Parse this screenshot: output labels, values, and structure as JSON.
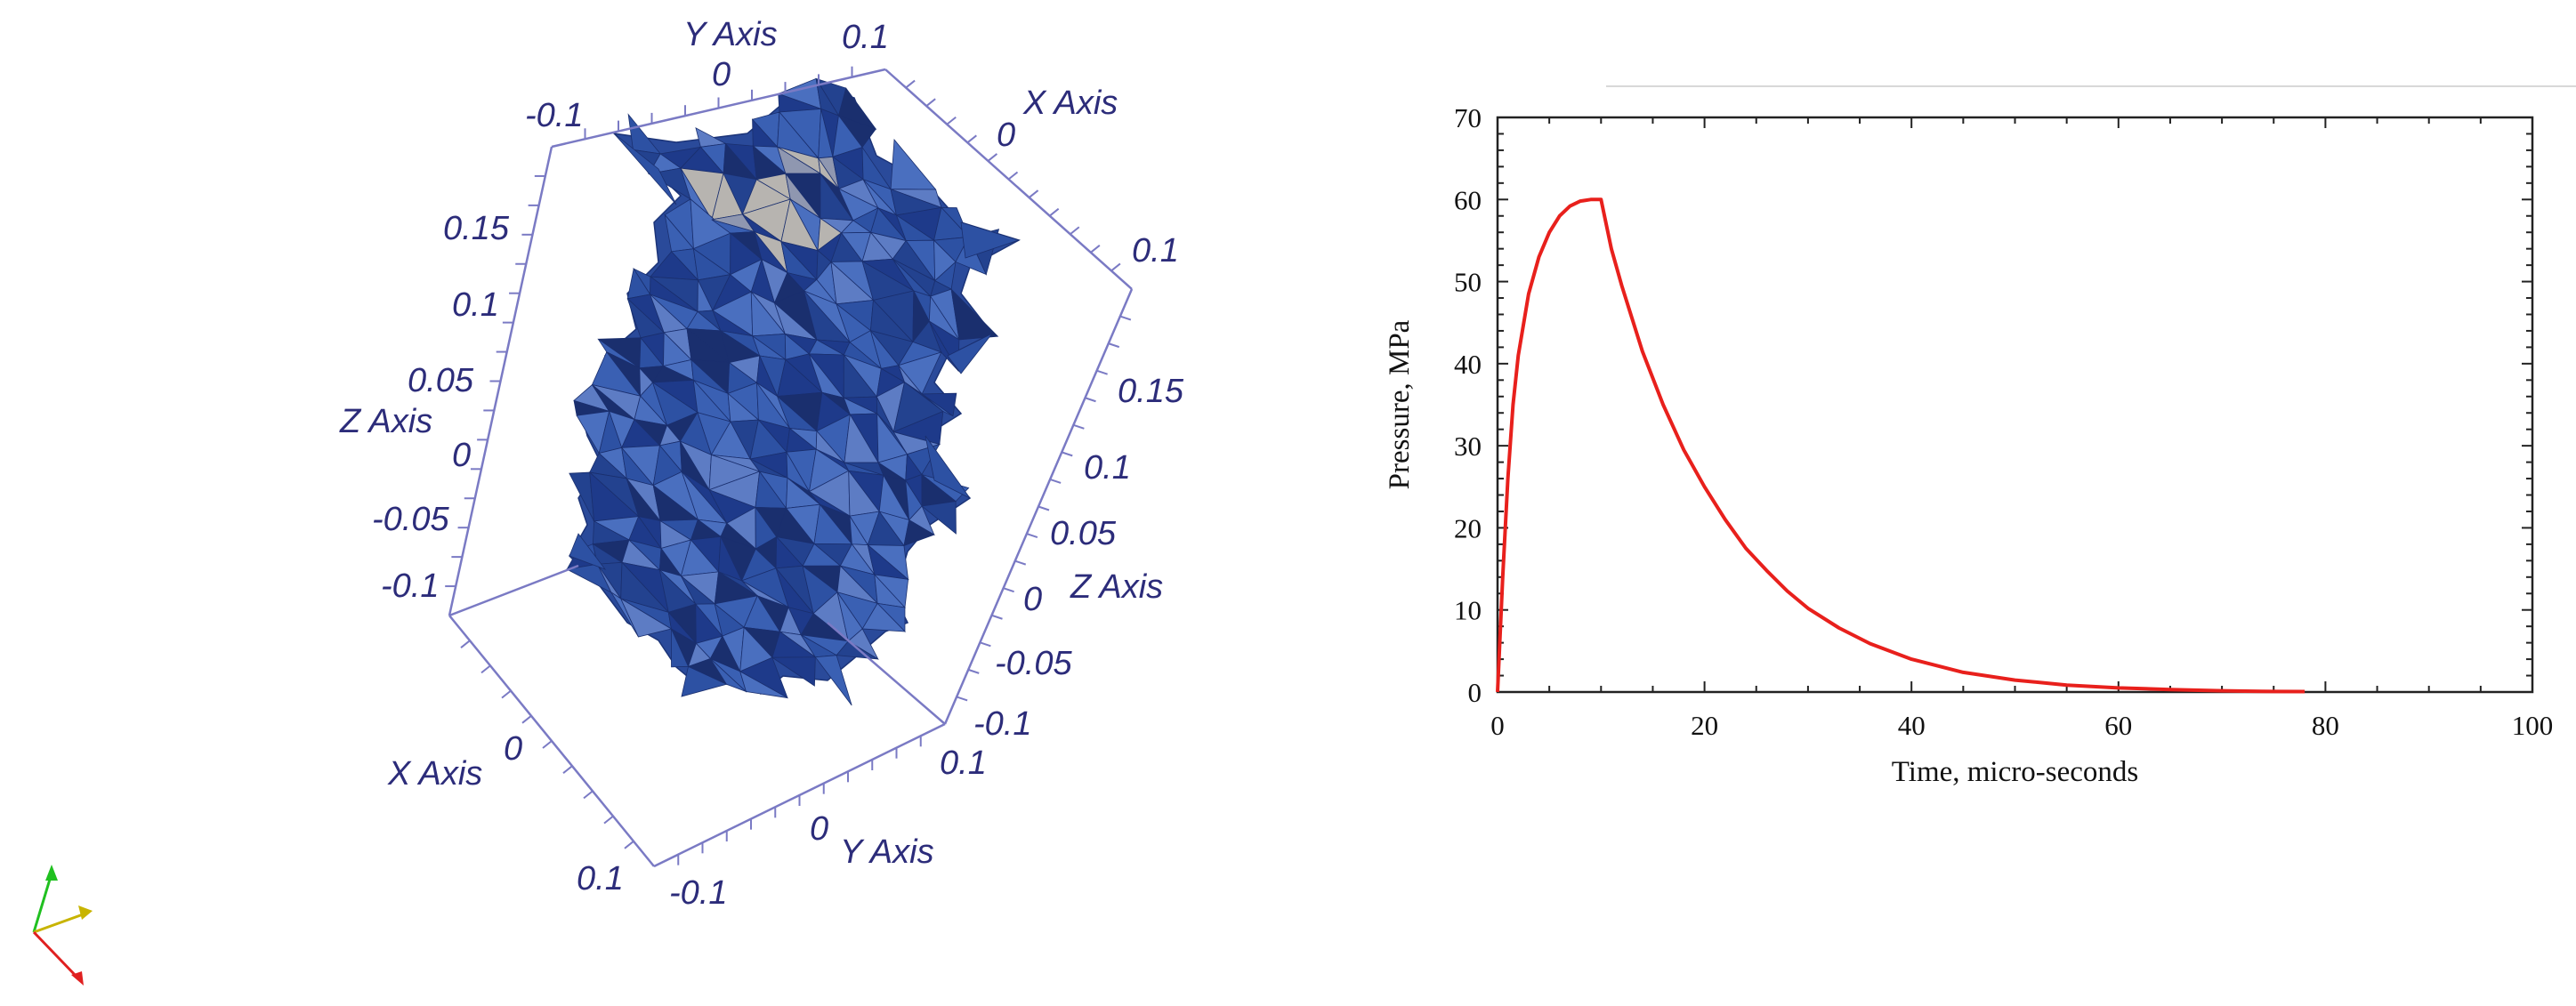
{
  "render_view": {
    "box_color": "#7a7ac4",
    "text_color": "#2c2c7a",
    "mesh_colors": [
      "#1e3a8a",
      "#23428f",
      "#2d51a3",
      "#3a60b3",
      "#4a6fbf",
      "#1a2f6e",
      "#5d7cc4",
      "#8f97b0",
      "#b7b4b0"
    ],
    "axis_titles": [
      {
        "key": "y_top",
        "text": "Y Axis"
      },
      {
        "key": "x_right",
        "text": "X Axis"
      },
      {
        "key": "z_left",
        "text": "Z Axis"
      },
      {
        "key": "z_right",
        "text": "Z Axis"
      },
      {
        "key": "x_bottom",
        "text": "X Axis"
      },
      {
        "key": "y_bottom",
        "text": "Y Axis"
      }
    ],
    "tick_labels": [
      {
        "key": "top_neg",
        "text": "-0.1"
      },
      {
        "key": "top_zero",
        "text": "0"
      },
      {
        "key": "top_pos",
        "text": "0.1"
      },
      {
        "key": "right_zero",
        "text": "0"
      },
      {
        "key": "right_pos",
        "text": "0.1"
      },
      {
        "key": "left_015",
        "text": "0.15"
      },
      {
        "key": "left_01",
        "text": "0.1"
      },
      {
        "key": "left_005",
        "text": "0.05"
      },
      {
        "key": "left_0",
        "text": "0"
      },
      {
        "key": "left_m005",
        "text": "-0.05"
      },
      {
        "key": "left_m01",
        "text": "-0.1"
      },
      {
        "key": "rz_015",
        "text": "0.15"
      },
      {
        "key": "rz_01",
        "text": "0.1"
      },
      {
        "key": "rz_005",
        "text": "0.05"
      },
      {
        "key": "rz_0",
        "text": "0"
      },
      {
        "key": "rz_m005",
        "text": "-0.05"
      },
      {
        "key": "rz_m01",
        "text": "-0.1"
      },
      {
        "key": "bx_zero",
        "text": "0"
      },
      {
        "key": "bx_pos",
        "text": "0.1"
      },
      {
        "key": "by_zero",
        "text": "0"
      },
      {
        "key": "by_pos",
        "text": "0.1"
      },
      {
        "key": "by_neg",
        "text": "-0.1"
      }
    ],
    "orientation_axes_colors": {
      "x": "#e02020",
      "y": "#20c020",
      "z": "#c8b400"
    }
  },
  "chart_data": {
    "type": "line",
    "title": "",
    "xlabel": "Time, micro-seconds",
    "ylabel": "Pressure, MPa",
    "xlim": [
      0,
      100
    ],
    "ylim": [
      0,
      70
    ],
    "xticks": [
      0,
      20,
      40,
      60,
      80,
      100
    ],
    "yticks": [
      0,
      10,
      20,
      30,
      40,
      50,
      60,
      70
    ],
    "grid": false,
    "series": [
      {
        "color": "#e8201c",
        "x": [
          0,
          0.5,
          1,
          1.5,
          2,
          3,
          4,
          5,
          6,
          7,
          8,
          9,
          10,
          11,
          12,
          13,
          14,
          16,
          18,
          20,
          22,
          24,
          26,
          28,
          30,
          33,
          36,
          40,
          45,
          50,
          55,
          60,
          65,
          70,
          75,
          78
        ],
        "y": [
          0,
          14,
          26,
          35,
          41,
          48.5,
          53,
          56,
          58,
          59.2,
          59.8,
          60,
          60,
          54,
          49.5,
          45.5,
          41.5,
          35,
          29.5,
          25,
          21,
          17.5,
          14.8,
          12.3,
          10.2,
          7.8,
          5.9,
          4.0,
          2.4,
          1.45,
          0.85,
          0.5,
          0.3,
          0.15,
          0.07,
          0.05
        ]
      }
    ]
  }
}
